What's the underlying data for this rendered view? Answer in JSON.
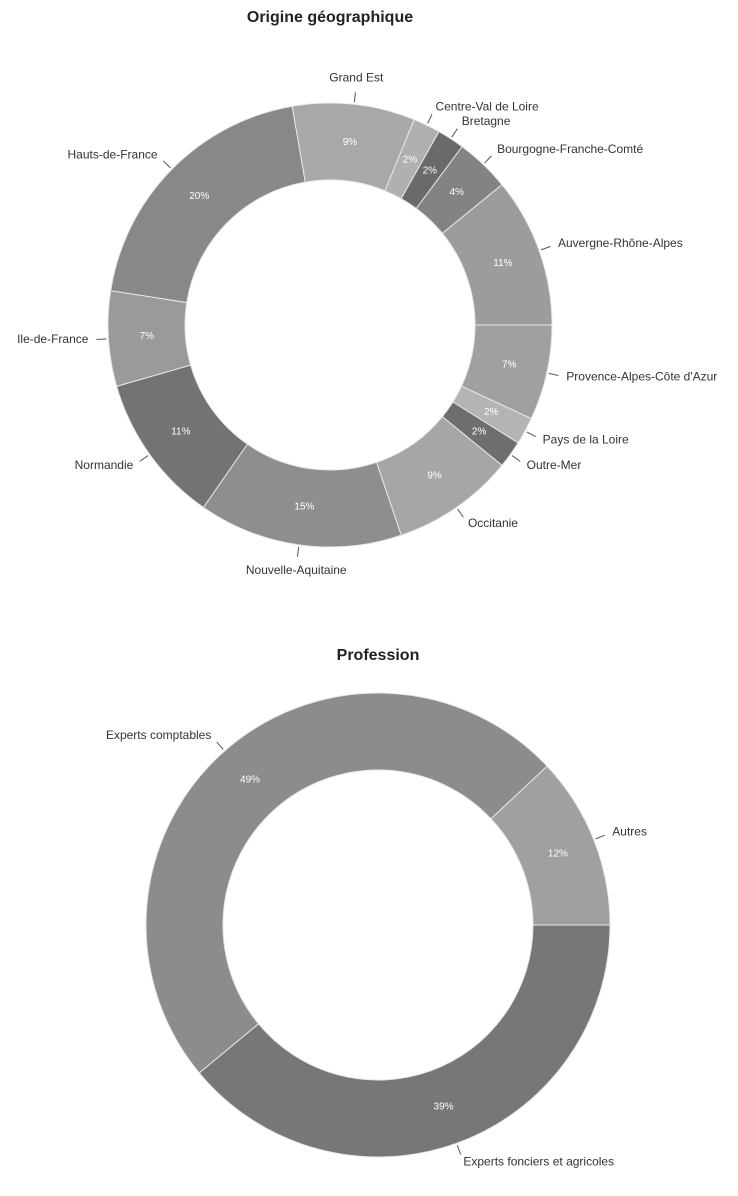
{
  "chart_data": [
    {
      "type": "pie",
      "title": "Origine géographique",
      "categories": [
        "Provence-Alpes-Côte d'Azur",
        "Pays de la Loire",
        "Outre-Mer",
        "Occitanie",
        "Nouvelle-Aquitaine",
        "Normandie",
        "Ile-de-France",
        "Hauts-de-France",
        "Grand Est",
        "Centre-Val de Loire",
        "Bretagne",
        "Bourgogne-Franche-Comté",
        "Auvergne-Rhône-Alpes"
      ],
      "values": [
        7,
        2,
        2,
        9,
        15,
        11,
        7,
        20,
        9,
        2,
        2,
        4,
        11
      ],
      "value_labels": [
        "7%",
        "2%",
        "2%",
        "9%",
        "15%",
        "11%",
        "7%",
        "20%",
        "9%",
        "2%",
        "2%",
        "4%",
        "11%"
      ],
      "colors": [
        "#a0a0a0",
        "#b4b4b4",
        "#6e6e6e",
        "#a6a6a6",
        "#8e8e8e",
        "#737373",
        "#9a9a9a",
        "#888888",
        "#a8a8a8",
        "#b0b0b0",
        "#6a6a6a",
        "#838383",
        "#9c9c9c"
      ]
    },
    {
      "type": "pie",
      "title": "Profession",
      "categories": [
        "Experts fonciers et agricoles",
        "Experts comptables",
        "Autres"
      ],
      "values": [
        39,
        49,
        12
      ],
      "value_labels": [
        "39%",
        "49%",
        "12%"
      ],
      "colors": [
        "#777777",
        "#8c8c8c",
        "#a0a0a0"
      ]
    }
  ]
}
